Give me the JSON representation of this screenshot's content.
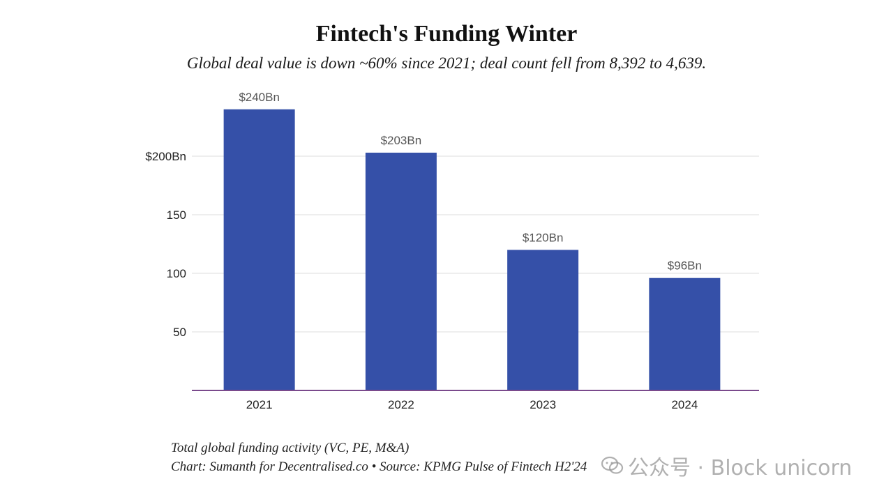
{
  "title": "Fintech's Funding Winter",
  "subtitle": "Global deal value is down ~60% since 2021; deal count fell from 8,392 to 4,639.",
  "footnote_line1": "Total global funding activity (VC, PE, M&A)",
  "footnote_line2": "Chart: Sumanth for Decentralised.co • Source: KPMG Pulse of Fintech H2'24",
  "watermark": "公众号 · Block unicorn",
  "colors": {
    "bar": "#3550a8",
    "baseline": "#7a4a8c",
    "grid": "#dddddd",
    "tick_text": "#222222",
    "data_label": "#555555"
  },
  "chart_data": {
    "type": "bar",
    "categories": [
      "2021",
      "2022",
      "2023",
      "2024"
    ],
    "values": [
      240,
      203,
      120,
      96
    ],
    "data_labels": [
      "$240Bn",
      "$203Bn",
      "$120Bn",
      "$96Bn"
    ],
    "title": "Fintech's Funding Winter",
    "subtitle": "Global deal value is down ~60% since 2021; deal count fell from 8,392 to 4,639.",
    "xlabel": "",
    "ylabel": "",
    "ylim": [
      0,
      250
    ],
    "yticks": [
      {
        "value": 50,
        "label": "50"
      },
      {
        "value": 100,
        "label": "100"
      },
      {
        "value": 150,
        "label": "150"
      },
      {
        "value": 200,
        "label": "$200Bn"
      }
    ],
    "grid": true,
    "legend": "none"
  }
}
